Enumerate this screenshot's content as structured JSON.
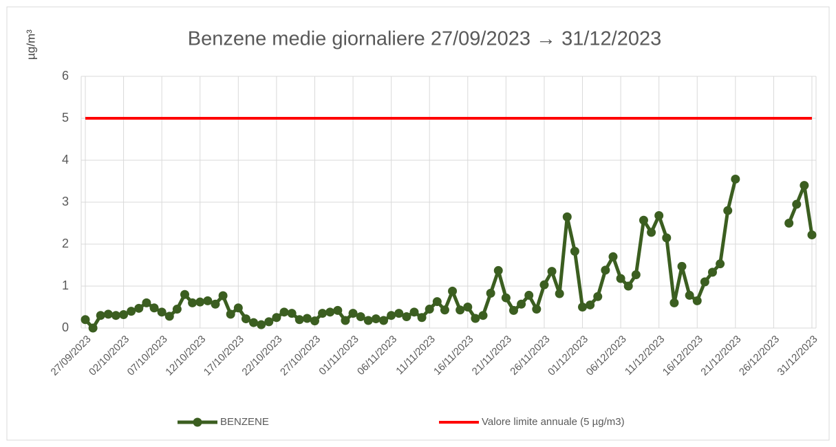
{
  "chart_data": {
    "type": "line",
    "title": "Benzene medie giornaliere 27/09/2023 → 31/12/2023",
    "y_label": "µg/m³",
    "categories": [
      "27/09/2023",
      null,
      null,
      null,
      null,
      "02/10/2023",
      null,
      null,
      null,
      null,
      "07/10/2023",
      null,
      null,
      null,
      null,
      "12/10/2023",
      null,
      null,
      null,
      null,
      "17/10/2023",
      null,
      null,
      null,
      null,
      "22/10/2023",
      null,
      null,
      null,
      null,
      "27/10/2023",
      null,
      null,
      null,
      null,
      "01/11/2023",
      null,
      null,
      null,
      null,
      "06/11/2023",
      null,
      null,
      null,
      null,
      "11/11/2023",
      null,
      null,
      null,
      null,
      "16/11/2023",
      null,
      null,
      null,
      null,
      "21/11/2023",
      null,
      null,
      null,
      null,
      "26/11/2023",
      null,
      null,
      null,
      null,
      "01/12/2023",
      null,
      null,
      null,
      null,
      "06/12/2023",
      null,
      null,
      null,
      null,
      "11/12/2023",
      null,
      null,
      null,
      null,
      "16/12/2023",
      null,
      null,
      null,
      null,
      "21/12/2023",
      null,
      null,
      null,
      null,
      "26/12/2023",
      null,
      null,
      null,
      null,
      "31/12/2023"
    ],
    "series": [
      {
        "name": "BENZENE",
        "color": "#3b5e20",
        "markers": true,
        "values": [
          0.2,
          0.0,
          0.3,
          0.33,
          0.3,
          0.32,
          0.4,
          0.47,
          0.6,
          0.48,
          0.38,
          0.28,
          0.45,
          0.8,
          0.6,
          0.62,
          0.65,
          0.57,
          0.77,
          0.33,
          0.48,
          0.22,
          0.13,
          0.08,
          0.15,
          0.25,
          0.38,
          0.35,
          0.2,
          0.23,
          0.17,
          0.35,
          0.38,
          0.42,
          0.18,
          0.35,
          0.27,
          0.18,
          0.22,
          0.18,
          0.3,
          0.35,
          0.27,
          0.38,
          0.25,
          0.45,
          0.63,
          0.43,
          0.88,
          0.43,
          0.5,
          0.23,
          0.3,
          0.83,
          1.37,
          0.72,
          0.42,
          0.57,
          0.78,
          0.45,
          1.03,
          1.35,
          0.82,
          2.65,
          1.83,
          0.5,
          0.55,
          0.75,
          1.38,
          1.7,
          1.18,
          1.0,
          1.27,
          2.57,
          2.28,
          2.68,
          2.15,
          0.6,
          1.47,
          0.78,
          0.65,
          1.1,
          1.33,
          1.53,
          2.8,
          3.55,
          null,
          null,
          null,
          null,
          null,
          null,
          2.5,
          2.95,
          3.4,
          2.22
        ]
      },
      {
        "name": "Valore limite annuale (5 µg/m3)",
        "color": "#ff0000",
        "markers": false,
        "values": [
          5,
          5,
          5,
          5,
          5,
          5,
          5,
          5,
          5,
          5,
          5,
          5,
          5,
          5,
          5,
          5,
          5,
          5,
          5,
          5,
          5,
          5,
          5,
          5,
          5,
          5,
          5,
          5,
          5,
          5,
          5,
          5,
          5,
          5,
          5,
          5,
          5,
          5,
          5,
          5,
          5,
          5,
          5,
          5,
          5,
          5,
          5,
          5,
          5,
          5,
          5,
          5,
          5,
          5,
          5,
          5,
          5,
          5,
          5,
          5,
          5,
          5,
          5,
          5,
          5,
          5,
          5,
          5,
          5,
          5,
          5,
          5,
          5,
          5,
          5,
          5,
          5,
          5,
          5,
          5,
          5,
          5,
          5,
          5,
          5,
          5,
          5,
          5,
          5,
          5,
          5,
          5,
          5,
          5,
          5,
          5
        ]
      }
    ],
    "ylim": [
      0,
      6
    ],
    "yticks": [
      0,
      1,
      2,
      3,
      4,
      5,
      6
    ],
    "grid": true,
    "legend": "bottom"
  }
}
